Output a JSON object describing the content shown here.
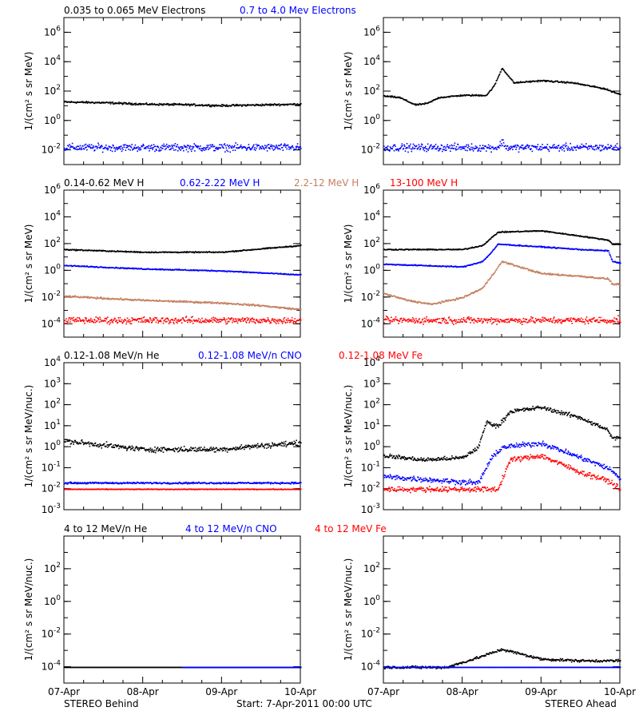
{
  "footer": {
    "left": "STEREO Behind",
    "center": "Start:  7-Apr-2011 00:00 UTC",
    "right": "STEREO Ahead"
  },
  "rows": [
    {
      "titles": [
        {
          "text": "0.035 to 0.065 MeV Electrons",
          "color": "#000000"
        },
        {
          "text": "0.7 to 4.0 Mev Electrons",
          "color": "#0000ff"
        }
      ]
    },
    {
      "titles": [
        {
          "text": "0.14-0.62 MeV H",
          "color": "#000000"
        },
        {
          "text": "0.62-2.22 MeV H",
          "color": "#0000ff"
        },
        {
          "text": "2.2-12 MeV H",
          "color": "#c48060"
        },
        {
          "text": "13-100 MeV H",
          "color": "#ff0000"
        }
      ]
    },
    {
      "titles": [
        {
          "text": "0.12-1.08 MeV/n He",
          "color": "#000000"
        },
        {
          "text": "0.12-1.08 MeV/n CNO",
          "color": "#0000ff"
        },
        {
          "text": "0.12-1.08 MeV Fe",
          "color": "#ff0000"
        }
      ]
    },
    {
      "titles": [
        {
          "text": "4 to 12 MeV/n He",
          "color": "#000000"
        },
        {
          "text": "4 to 12 MeV/n CNO",
          "color": "#0000ff"
        },
        {
          "text": "4 to 12 MeV Fe",
          "color": "#ff0000"
        }
      ]
    }
  ],
  "chart_data": [
    {
      "type": "scatter",
      "panel": "behind-electrons",
      "ylabel": "1/(cm² s sr MeV)",
      "yscale": "log",
      "ylim_log10": [
        -3,
        7
      ],
      "xticks": [
        "07-Apr",
        "08-Apr",
        "09-Apr",
        "10-Apr"
      ],
      "yticks": [
        "10^-2",
        "10^0",
        "10^2",
        "10^4",
        "10^6"
      ],
      "series": [
        {
          "name": "0.035 to 0.065 MeV Electrons",
          "color": "#000000",
          "x": [
            0,
            0.5,
            1,
            1.5,
            2,
            2.5,
            3
          ],
          "log10_y": [
            1.3,
            1.25,
            1.15,
            1.12,
            1.05,
            1.1,
            1.15
          ],
          "noise": 0.08
        },
        {
          "name": "0.7 to 4.0 Mev Electrons",
          "color": "#0000ff",
          "x": [
            0,
            3
          ],
          "log10_y": [
            -1.8,
            -1.8
          ],
          "noise": 0.3
        }
      ]
    },
    {
      "type": "scatter",
      "panel": "ahead-electrons",
      "ylabel": "1/(cm² s sr MeV)",
      "yscale": "log",
      "ylim_log10": [
        -3,
        7
      ],
      "xticks": [
        "07-Apr",
        "08-Apr",
        "09-Apr",
        "10-Apr"
      ],
      "yticks": [
        "10^-2",
        "10^0",
        "10^2",
        "10^4",
        "10^6"
      ],
      "series": [
        {
          "name": "0.035 to 0.065 MeV Electrons",
          "color": "#000000",
          "x": [
            0,
            0.2,
            0.4,
            0.55,
            0.7,
            1.0,
            1.3,
            1.4,
            1.5,
            1.65,
            2.0,
            2.4,
            2.8,
            3.0
          ],
          "log10_y": [
            1.7,
            1.6,
            1.1,
            1.2,
            1.6,
            1.75,
            1.75,
            2.4,
            3.6,
            2.6,
            2.75,
            2.6,
            2.2,
            1.8
          ],
          "noise": 0.06
        },
        {
          "name": "0.7 to 4.0 Mev Electrons",
          "color": "#0000ff",
          "x": [
            0,
            1.45,
            1.5,
            1.55,
            3
          ],
          "log10_y": [
            -1.8,
            -1.8,
            -1.4,
            -1.8,
            -1.8
          ],
          "noise": 0.3
        }
      ]
    },
    {
      "type": "scatter",
      "panel": "behind-protons",
      "ylabel": "1/(cm² s sr MeV)",
      "yscale": "log",
      "ylim_log10": [
        -5,
        6
      ],
      "xticks": [
        "07-Apr",
        "08-Apr",
        "09-Apr",
        "10-Apr"
      ],
      "yticks": [
        "10^-4",
        "10^-2",
        "10^0",
        "10^2",
        "10^4",
        "10^6"
      ],
      "series": [
        {
          "name": "0.14-0.62 MeV H",
          "color": "#000000",
          "x": [
            0,
            1,
            2,
            2.5,
            3
          ],
          "log10_y": [
            1.6,
            1.4,
            1.4,
            1.65,
            1.9
          ],
          "noise": 0.05
        },
        {
          "name": "0.62-2.22 MeV H",
          "color": "#0000ff",
          "x": [
            0,
            1,
            2,
            3
          ],
          "log10_y": [
            0.4,
            0.15,
            0.0,
            -0.3
          ],
          "noise": 0.05
        },
        {
          "name": "2.2-12 MeV H",
          "color": "#c48060",
          "x": [
            0,
            1,
            2,
            2.5,
            3
          ],
          "log10_y": [
            -1.9,
            -2.2,
            -2.4,
            -2.6,
            -2.9
          ],
          "noise": 0.08
        },
        {
          "name": "13-100 MeV H",
          "color": "#ff0000",
          "x": [
            0,
            3
          ],
          "log10_y": [
            -3.7,
            -3.7
          ],
          "noise": 0.3
        }
      ]
    },
    {
      "type": "scatter",
      "panel": "ahead-protons",
      "ylabel": "1/(cm² s sr MeV)",
      "yscale": "log",
      "ylim_log10": [
        -5,
        6
      ],
      "xticks": [
        "07-Apr",
        "08-Apr",
        "09-Apr",
        "10-Apr"
      ],
      "yticks": [
        "10^-4",
        "10^-2",
        "10^0",
        "10^2",
        "10^4",
        "10^6"
      ],
      "series": [
        {
          "name": "0.14-0.62 MeV H",
          "color": "#000000",
          "x": [
            0,
            1,
            1.25,
            1.35,
            1.45,
            2,
            2.5,
            2.85,
            2.9,
            3
          ],
          "log10_y": [
            1.6,
            1.6,
            1.9,
            2.4,
            2.9,
            3.0,
            2.6,
            2.3,
            2.0,
            2.0
          ],
          "noise": 0.05
        },
        {
          "name": "0.62-2.22 MeV H",
          "color": "#0000ff",
          "x": [
            0,
            1,
            1.25,
            1.35,
            1.45,
            2,
            2.5,
            2.85,
            2.9,
            3
          ],
          "log10_y": [
            0.5,
            0.3,
            0.7,
            1.3,
            2.0,
            1.8,
            1.6,
            1.5,
            0.7,
            0.6
          ],
          "noise": 0.05
        },
        {
          "name": "2.2-12 MeV H",
          "color": "#c48060",
          "x": [
            0,
            0.3,
            0.6,
            1.0,
            1.25,
            1.35,
            1.5,
            2.0,
            2.5,
            2.85,
            2.9,
            3
          ],
          "log10_y": [
            -1.7,
            -2.2,
            -2.5,
            -2.0,
            -1.3,
            -0.5,
            0.7,
            -0.2,
            -0.4,
            -0.6,
            -1.0,
            -1.0
          ],
          "noise": 0.08
        },
        {
          "name": "13-100 MeV H",
          "color": "#ff0000",
          "x": [
            0,
            3
          ],
          "log10_y": [
            -3.7,
            -3.7
          ],
          "noise": 0.3
        }
      ]
    },
    {
      "type": "scatter",
      "panel": "behind-heavy-low",
      "ylabel": "1/(cm² s sr MeV/nuc.)",
      "yscale": "log",
      "ylim_log10": [
        -3,
        4
      ],
      "xticks": [
        "07-Apr",
        "08-Apr",
        "09-Apr",
        "10-Apr"
      ],
      "yticks": [
        "10^-3",
        "10^-2",
        "10^-1",
        "10^0",
        "10^1",
        "10^2",
        "10^3",
        "10^4"
      ],
      "series": [
        {
          "name": "0.12-1.08 MeV/n He",
          "color": "#000000",
          "x": [
            0,
            1,
            2,
            2.4,
            3
          ],
          "log10_y": [
            0.3,
            -0.1,
            -0.1,
            0.05,
            0.2
          ],
          "noise": 0.15
        },
        {
          "name": "0.12-1.08 MeV/n CNO",
          "color": "#0000ff",
          "x": [
            0,
            3
          ],
          "log10_y": [
            -1.7,
            -1.7
          ],
          "noise": 0.05
        },
        {
          "name": "0.12-1.08 MeV Fe",
          "color": "#ff0000",
          "x": [
            0,
            3
          ],
          "log10_y": [
            -2.0,
            -2.0
          ],
          "noise": 0.02
        }
      ]
    },
    {
      "type": "scatter",
      "panel": "ahead-heavy-low",
      "ylabel": "1/(cm² s sr MeV/nuc.)",
      "yscale": "log",
      "ylim_log10": [
        -3,
        4
      ],
      "xticks": [
        "07-Apr",
        "08-Apr",
        "09-Apr",
        "10-Apr"
      ],
      "yticks": [
        "10^-3",
        "10^-2",
        "10^-1",
        "10^0",
        "10^1",
        "10^2",
        "10^3",
        "10^4"
      ],
      "series": [
        {
          "name": "0.12-1.08 MeV/n He",
          "color": "#000000",
          "x": [
            0,
            0.5,
            1.0,
            1.2,
            1.3,
            1.45,
            1.6,
            2.0,
            2.5,
            2.85,
            2.9,
            3
          ],
          "log10_y": [
            -0.4,
            -0.6,
            -0.5,
            0.0,
            1.2,
            1.0,
            1.7,
            1.9,
            1.4,
            0.8,
            0.4,
            0.5
          ],
          "noise": 0.12
        },
        {
          "name": "0.12-1.08 MeV/n CNO",
          "color": "#0000ff",
          "x": [
            0,
            1.2,
            1.35,
            1.5,
            2.0,
            2.5,
            2.85,
            3
          ],
          "log10_y": [
            -1.4,
            -1.7,
            -0.6,
            0.0,
            0.2,
            -0.5,
            -1.0,
            -1.5
          ],
          "noise": 0.15
        },
        {
          "name": "0.12-1.08 MeV Fe",
          "color": "#ff0000",
          "x": [
            0,
            1.45,
            1.6,
            2.0,
            2.5,
            2.85,
            3
          ],
          "log10_y": [
            -2.0,
            -2.0,
            -0.6,
            -0.4,
            -1.2,
            -1.6,
            -2.0
          ],
          "noise": 0.15
        }
      ]
    },
    {
      "type": "scatter",
      "panel": "behind-heavy-high",
      "ylabel": "1/(cm² s sr MeV/nuc.)",
      "yscale": "log",
      "ylim_log10": [
        -5,
        4
      ],
      "xticks": [
        "07-Apr",
        "08-Apr",
        "09-Apr",
        "10-Apr"
      ],
      "yticks": [
        "10^-4",
        "10^-2",
        "10^0",
        "10^2"
      ],
      "series": [
        {
          "name": "4 to 12 MeV/n He",
          "color": "#000000",
          "x": [
            0,
            3
          ],
          "log10_y": [
            -4.0,
            -4.0
          ],
          "noise": 0.0
        },
        {
          "name": "4 to 12 MeV/n CNO",
          "color": "#0000ff",
          "x": [
            1.5,
            3
          ],
          "log10_y": [
            -4.0,
            -4.0
          ],
          "noise": 0.0
        }
      ]
    },
    {
      "type": "scatter",
      "panel": "ahead-heavy-high",
      "ylabel": "1/(cm² s sr MeV/nuc.)",
      "yscale": "log",
      "ylim_log10": [
        -5,
        4
      ],
      "xticks": [
        "07-Apr",
        "08-Apr",
        "09-Apr",
        "10-Apr"
      ],
      "yticks": [
        "10^-4",
        "10^-2",
        "10^0",
        "10^2"
      ],
      "series": [
        {
          "name": "4 to 12 MeV/n He",
          "color": "#000000",
          "x": [
            0,
            0.8,
            1.2,
            1.5,
            2.0,
            2.5,
            3
          ],
          "log10_y": [
            -4.0,
            -4.0,
            -3.4,
            -2.9,
            -3.5,
            -3.6,
            -3.6
          ],
          "noise": 0.1
        },
        {
          "name": "4 to 12 MeV/n CNO",
          "color": "#0000ff",
          "x": [
            0,
            1.5,
            3
          ],
          "log10_y": [
            -4.0,
            -4.0,
            -4.0
          ],
          "noise": 0.0
        }
      ]
    }
  ]
}
